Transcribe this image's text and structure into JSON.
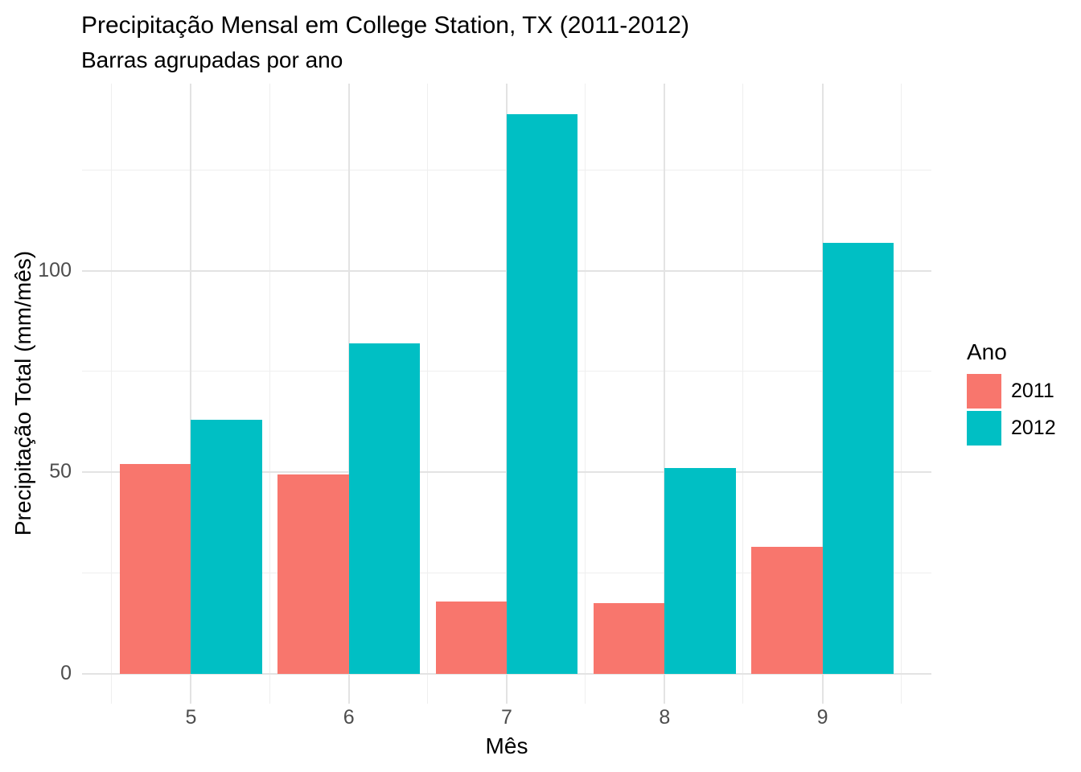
{
  "chart": {
    "title": "Precipitação Mensal em College Station, TX (2011-2012)",
    "subtitle": "Barras agrupadas por ano",
    "xlabel": "Mês",
    "ylabel": "Precipitação Total (mm/mês)",
    "legend_title": "Ano"
  },
  "chart_data": {
    "type": "bar",
    "grouped": true,
    "title": "Precipitação Mensal em College Station, TX (2011-2012)",
    "subtitle": "Barras agrupadas por ano",
    "xlabel": "Mês",
    "ylabel": "Precipitação Total (mm/mês)",
    "categories": [
      5,
      6,
      7,
      8,
      9
    ],
    "series": [
      {
        "name": "2011",
        "color": "#F8766D",
        "values": [
          52,
          49.5,
          18,
          17.5,
          31.5
        ]
      },
      {
        "name": "2012",
        "color": "#00BFC4",
        "values": [
          63,
          82,
          139,
          51,
          107
        ]
      }
    ],
    "x_axis": {
      "label": "Mês",
      "ticks": [
        5,
        6,
        7,
        8,
        9
      ],
      "minor_ticks": [
        4.5,
        5.5,
        6.5,
        7.5,
        8.5,
        9.5
      ],
      "range": [
        4.31,
        9.69
      ]
    },
    "y_axis": {
      "label": "Precipitação Total (mm/mês)",
      "ticks": [
        0,
        50,
        100
      ],
      "minor_ticks": [
        25,
        75,
        125
      ],
      "range": [
        -7.4,
        146.5
      ]
    },
    "bar_width_units": 0.45,
    "grid": true,
    "legend": {
      "title": "Ano",
      "position": "right",
      "entries": [
        "2011",
        "2012"
      ]
    },
    "background": "#FFFFFF"
  },
  "colors": {
    "series_2011": "#F8766D",
    "series_2012": "#00BFC4",
    "grid_major": "#E3E3E3",
    "grid_minor": "#EFEFEF",
    "axis_text": "#4D4D4D",
    "title_text": "#000000",
    "panel_background": "#FFFFFF"
  }
}
